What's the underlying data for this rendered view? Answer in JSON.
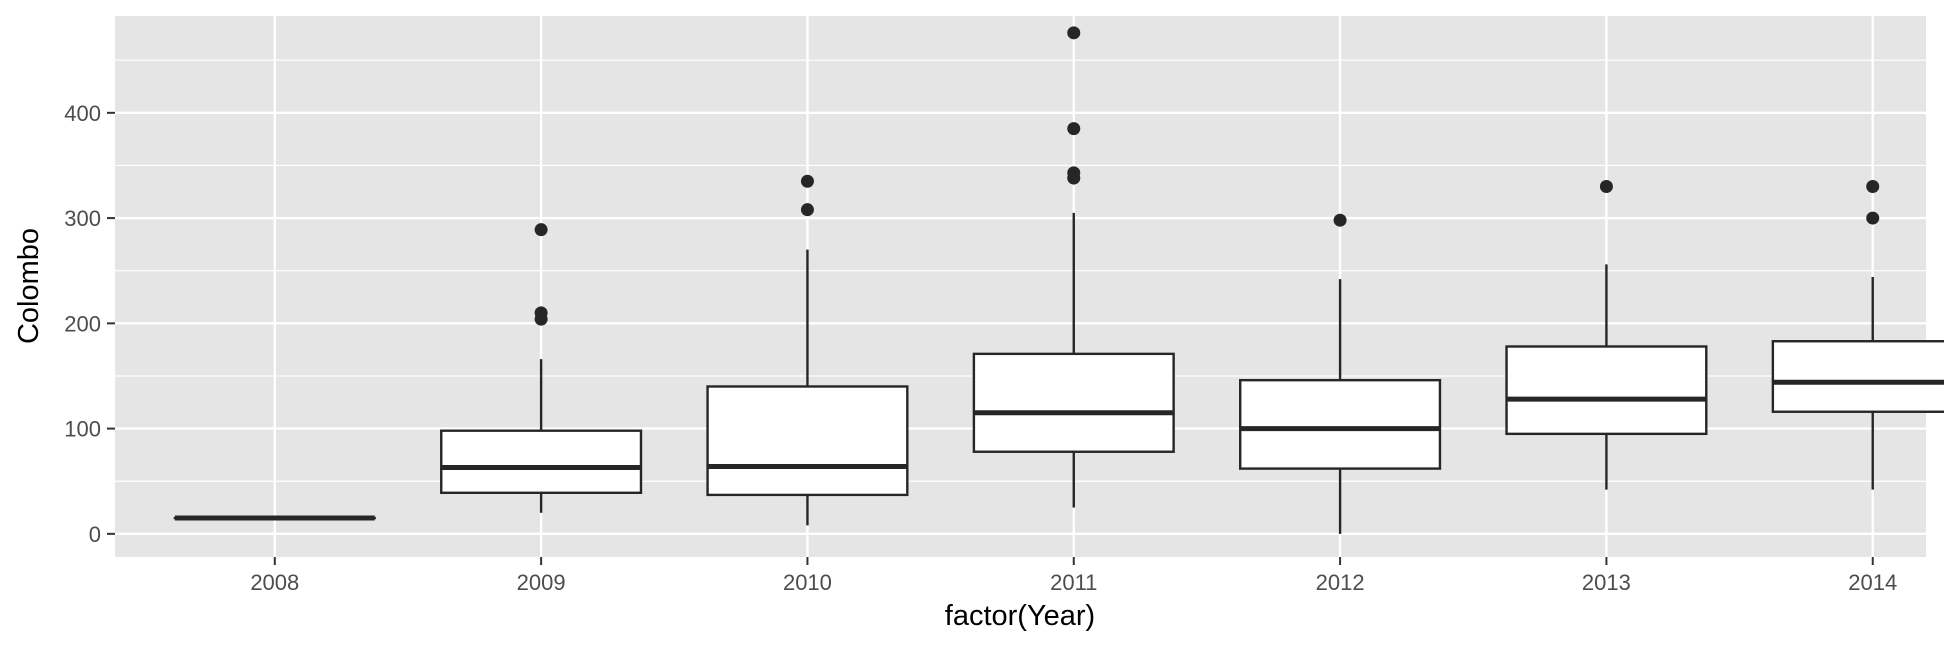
{
  "chart_data": {
    "type": "boxplot",
    "xlabel": "factor(Year)",
    "ylabel": "Colombo",
    "ylim": [
      -22,
      492
    ],
    "yticks": [
      0,
      100,
      200,
      300,
      400
    ],
    "ytick_labels": [
      "0",
      "100",
      "200",
      "300",
      "400"
    ],
    "categories": [
      "2008",
      "2009",
      "2010",
      "2011",
      "2012",
      "2013",
      "2014"
    ],
    "boxes": [
      {
        "category": "2008",
        "min": 15,
        "q1": 15,
        "median": 15,
        "q3": 15,
        "max": 15,
        "outliers": []
      },
      {
        "category": "2009",
        "min": 20,
        "q1": 39,
        "median": 63,
        "q3": 98,
        "max": 166,
        "outliers": [
          204,
          210,
          289
        ]
      },
      {
        "category": "2010",
        "min": 8,
        "q1": 37,
        "median": 64,
        "q3": 140,
        "max": 270,
        "outliers": [
          308,
          335
        ]
      },
      {
        "category": "2011",
        "min": 25,
        "q1": 78,
        "median": 115,
        "q3": 171,
        "max": 305,
        "outliers": [
          338,
          343,
          385,
          476
        ]
      },
      {
        "category": "2012",
        "min": 0,
        "q1": 62,
        "median": 100,
        "q3": 146,
        "max": 242,
        "outliers": [
          298
        ]
      },
      {
        "category": "2013",
        "min": 42,
        "q1": 95,
        "median": 128,
        "q3": 178,
        "max": 256,
        "outliers": [
          330
        ]
      },
      {
        "category": "2014",
        "min": 42,
        "q1": 116,
        "median": 144,
        "q3": 183,
        "max": 244,
        "outliers": [
          300,
          330
        ]
      }
    ],
    "grid": true,
    "legend": "none",
    "colors": {
      "panel_background": "#e5e5e5",
      "grid": "#ffffff",
      "box_fill": "#ffffff",
      "box_line": "#262626",
      "tick_text": "#4d4d4d",
      "title_text": "#000000"
    }
  }
}
